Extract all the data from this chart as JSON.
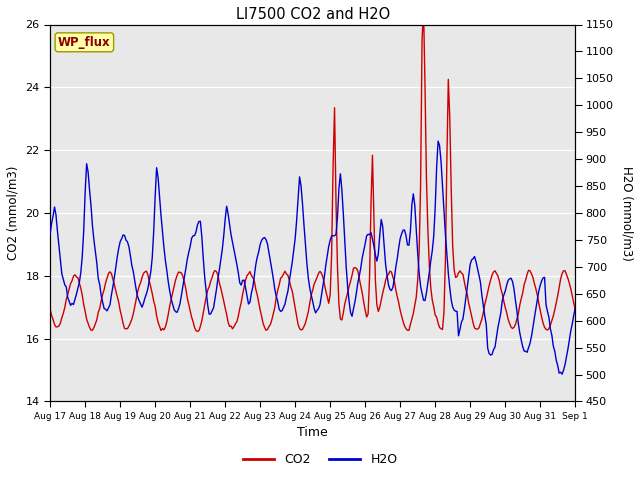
{
  "title": "LI7500 CO2 and H2O",
  "xlabel": "Time",
  "ylabel_left": "CO2 (mmol/m3)",
  "ylabel_right": "H2O (mmol/m3)",
  "ylim_left": [
    14,
    26
  ],
  "ylim_right": [
    450,
    1150
  ],
  "yticks_left": [
    14,
    16,
    18,
    20,
    22,
    24,
    26
  ],
  "yticks_right": [
    450,
    500,
    550,
    600,
    650,
    700,
    750,
    800,
    850,
    900,
    950,
    1000,
    1050,
    1100,
    1150
  ],
  "xtick_labels": [
    "Aug 17",
    "Aug 18",
    "Aug 19",
    "Aug 20",
    "Aug 21",
    "Aug 22",
    "Aug 23",
    "Aug 24",
    "Aug 25",
    "Aug 26",
    "Aug 27",
    "Aug 28",
    "Aug 29",
    "Aug 30",
    "Aug 31",
    "Sep 1"
  ],
  "co2_color": "#cc0000",
  "h2o_color": "#0000cc",
  "plot_bg_color": "#e8e8e8",
  "wp_flux_bg": "#ffffaa",
  "wp_flux_text_color": "#8b0000",
  "wp_flux_label": "WP_flux",
  "legend_co2": "CO2",
  "legend_h2o": "H2O",
  "linewidth": 1.0,
  "seed": 42
}
